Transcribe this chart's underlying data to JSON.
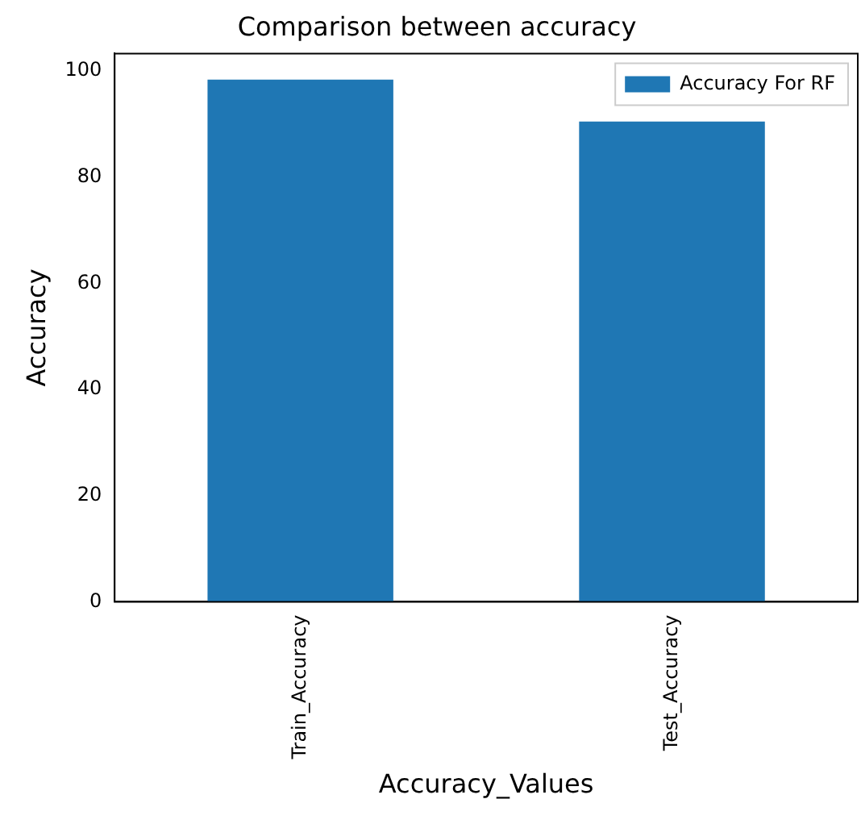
{
  "chart_data": {
    "type": "bar",
    "title": "Comparison between accuracy",
    "xlabel": "Accuracy_Values",
    "ylabel": "Accuracy",
    "categories": [
      "Train_Accuracy",
      "Test_Accuracy"
    ],
    "series": [
      {
        "name": "Accuracy For RF",
        "color": "#1f77b4",
        "values": [
          98.4,
          90.5
        ]
      }
    ],
    "ylim": [
      0,
      103.3
    ],
    "yticks": [
      0,
      20,
      40,
      60,
      80,
      100
    ],
    "grid": false,
    "legend": "top right"
  }
}
